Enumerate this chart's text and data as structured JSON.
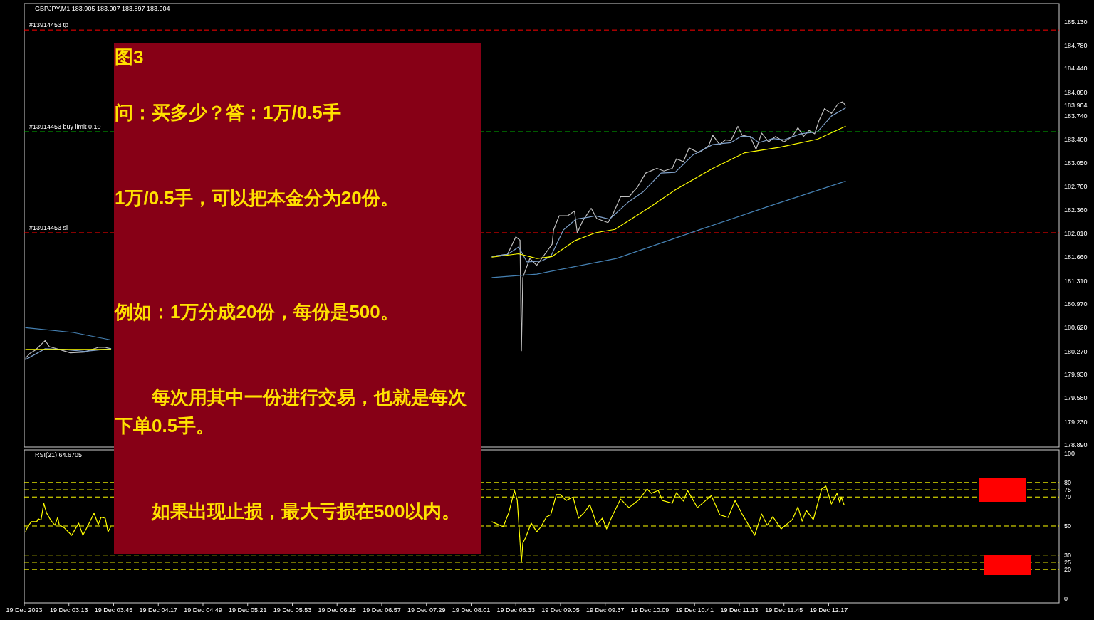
{
  "chart_data": [
    {
      "type": "line",
      "title": "GBPJPY,M1  183.905 183.907 183.897 183.904",
      "tick_labels": "y",
      "xlim": [
        "2023-12-19T02:41",
        "2023-12-19T15:02"
      ],
      "ylim": [
        178.86,
        185.4
      ],
      "yticks": [
        {
          "value": 185.13,
          "label": "185.130"
        },
        {
          "value": 184.78,
          "label": "184.780"
        },
        {
          "value": 184.44,
          "label": "184.440"
        },
        {
          "value": 184.09,
          "label": "184.090"
        },
        {
          "value": 183.904,
          "label": "183.904"
        },
        {
          "value": 183.74,
          "label": "183.740"
        },
        {
          "value": 183.4,
          "label": "183.400"
        },
        {
          "value": 183.05,
          "label": "183.050"
        },
        {
          "value": 182.7,
          "label": "182.700"
        },
        {
          "value": 182.36,
          "label": "182.360"
        },
        {
          "value": 182.01,
          "label": "182.010"
        },
        {
          "value": 181.66,
          "label": "181.660"
        },
        {
          "value": 181.31,
          "label": "181.310"
        },
        {
          "value": 180.97,
          "label": "180.970"
        },
        {
          "value": 180.62,
          "label": "180.620"
        },
        {
          "value": 180.27,
          "label": "180.270"
        },
        {
          "value": 179.93,
          "label": "179.930"
        },
        {
          "value": 179.58,
          "label": "179.580"
        },
        {
          "value": 179.23,
          "label": "179.230"
        },
        {
          "value": 178.89,
          "label": "178.890"
        }
      ],
      "ref_lines": [
        {
          "axis": "y",
          "value": 185.01,
          "label": "#13914453 tp",
          "color": "#ff0000",
          "line_style": "dashed"
        },
        {
          "axis": "y",
          "value": 183.904,
          "color": "#778899",
          "line_style": "solid"
        },
        {
          "axis": "y",
          "value": 183.51,
          "label": "#13914453 buy limit 0.10",
          "color": "#00c000",
          "line_style": "dashed"
        },
        {
          "axis": "y",
          "value": 182.02,
          "label": "#13914453 sl",
          "color": "#ff0000",
          "line_style": "dashed"
        }
      ],
      "series": [
        {
          "color": "#c0c0c0",
          "x": [
            "2023-12-19T02:42",
            "2023-12-19T02:45",
            "2023-12-19T02:49",
            "2023-12-19T02:56",
            "2023-12-19T02:59",
            "2023-12-19T03:06",
            "2023-12-19T03:14",
            "2023-12-19T03:24",
            "2023-12-19T03:34",
            "2023-12-19T03:39",
            "2023-12-19T03:43"
          ],
          "values": [
            180.17,
            180.24,
            180.29,
            180.43,
            180.34,
            180.3,
            180.25,
            180.26,
            180.33,
            180.33,
            180.31
          ]
        },
        {
          "color": "#c0c0c0",
          "x": [
            "2023-12-19T08:19",
            "2023-12-19T08:27",
            "2023-12-19T08:33",
            "2023-12-19T08:36",
            "2023-12-19T08:37",
            "2023-12-19T08:38",
            "2023-12-19T08:43",
            "2023-12-19T08:48",
            "2023-12-19T08:54",
            "2023-12-19T08:59",
            "2023-12-19T09:00",
            "2023-12-19T09:04",
            "2023-12-19T09:10",
            "2023-12-19T09:15",
            "2023-12-19T09:17",
            "2023-12-19T09:21",
            "2023-12-19T09:27",
            "2023-12-19T09:31",
            "2023-12-19T09:39",
            "2023-12-19T09:42",
            "2023-12-19T09:48",
            "2023-12-19T09:54",
            "2023-12-19T10:00",
            "2023-12-19T10:06",
            "2023-12-19T10:14",
            "2023-12-19T10:19",
            "2023-12-19T10:25",
            "2023-12-19T10:28",
            "2023-12-19T10:33",
            "2023-12-19T10:37",
            "2023-12-19T10:44",
            "2023-12-19T10:51",
            "2023-12-19T10:54",
            "2023-12-19T10:59",
            "2023-12-19T11:03",
            "2023-12-19T11:07",
            "2023-12-19T11:12",
            "2023-12-19T11:15",
            "2023-12-19T11:21",
            "2023-12-19T11:25",
            "2023-12-19T11:29",
            "2023-12-19T11:34",
            "2023-12-19T11:39",
            "2023-12-19T11:45",
            "2023-12-19T11:51",
            "2023-12-19T11:55",
            "2023-12-19T11:59",
            "2023-12-19T12:03",
            "2023-12-19T12:07",
            "2023-12-19T12:10",
            "2023-12-19T12:14",
            "2023-12-19T12:19",
            "2023-12-19T12:24",
            "2023-12-19T12:27",
            "2023-12-19T12:29"
          ],
          "values": [
            181.68,
            181.7,
            181.96,
            181.91,
            180.28,
            181.36,
            181.64,
            181.54,
            181.71,
            181.85,
            182.06,
            182.27,
            182.27,
            182.34,
            182.02,
            182.2,
            182.38,
            182.23,
            182.17,
            182.27,
            182.55,
            182.55,
            182.69,
            182.9,
            182.97,
            182.93,
            182.97,
            183.11,
            183.07,
            183.27,
            183.2,
            183.3,
            183.46,
            183.32,
            183.39,
            183.38,
            183.59,
            183.46,
            183.43,
            183.25,
            183.49,
            183.36,
            183.44,
            183.36,
            183.44,
            183.57,
            183.44,
            183.53,
            183.48,
            183.67,
            183.85,
            183.78,
            183.93,
            183.95,
            183.9
          ]
        },
        {
          "color": "#7fa0c8",
          "x": [
            "2023-12-19T02:42",
            "2023-12-19T02:56",
            "2023-12-19T03:09",
            "2023-12-19T03:24",
            "2023-12-19T03:43"
          ],
          "values": [
            180.15,
            180.31,
            180.3,
            180.27,
            180.31
          ]
        },
        {
          "color": "#7fa0c8",
          "x": [
            "2023-12-19T08:16",
            "2023-12-19T08:27",
            "2023-12-19T08:35",
            "2023-12-19T08:41",
            "2023-12-19T08:51",
            "2023-12-19T08:58",
            "2023-12-19T09:07",
            "2023-12-19T09:16",
            "2023-12-19T09:25",
            "2023-12-19T09:30",
            "2023-12-19T09:40",
            "2023-12-19T09:54",
            "2023-12-19T10:04",
            "2023-12-19T10:17",
            "2023-12-19T10:27",
            "2023-12-19T10:40",
            "2023-12-19T10:54",
            "2023-12-19T11:07",
            "2023-12-19T11:14",
            "2023-12-19T11:21",
            "2023-12-19T11:27",
            "2023-12-19T11:37",
            "2023-12-19T11:45",
            "2023-12-19T11:57",
            "2023-12-19T12:09",
            "2023-12-19T12:19",
            "2023-12-19T12:29"
          ],
          "values": [
            181.67,
            181.7,
            181.81,
            181.59,
            181.6,
            181.67,
            182.06,
            182.22,
            182.25,
            182.27,
            182.22,
            182.48,
            182.62,
            182.9,
            182.91,
            183.17,
            183.32,
            183.35,
            183.44,
            183.44,
            183.35,
            183.41,
            183.39,
            183.48,
            183.51,
            183.74,
            183.86
          ]
        },
        {
          "color": "#ffff00",
          "x": [
            "2023-12-19T02:42",
            "2023-12-19T03:09",
            "2023-12-19T03:43"
          ],
          "values": [
            180.3,
            180.3,
            180.3
          ]
        },
        {
          "color": "#ffff00",
          "x": [
            "2023-12-19T08:16",
            "2023-12-19T08:35",
            "2023-12-19T08:48",
            "2023-12-19T08:59",
            "2023-12-19T09:15",
            "2023-12-19T09:30",
            "2023-12-19T09:44",
            "2023-12-19T10:10",
            "2023-12-19T10:27",
            "2023-12-19T10:54",
            "2023-12-19T11:17",
            "2023-12-19T11:42",
            "2023-12-19T12:09",
            "2023-12-19T12:29"
          ],
          "values": [
            181.66,
            181.71,
            181.64,
            181.67,
            181.9,
            182.02,
            182.07,
            182.41,
            182.65,
            182.97,
            183.2,
            183.28,
            183.4,
            183.59
          ]
        },
        {
          "color": "#4682b4",
          "x": [
            "2023-12-19T02:42",
            "2023-12-19T03:16",
            "2023-12-19T03:43"
          ],
          "values": [
            180.62,
            180.55,
            180.44
          ]
        },
        {
          "color": "#4682b4",
          "x": [
            "2023-12-19T08:16",
            "2023-12-19T08:48",
            "2023-12-19T09:45",
            "2023-12-19T10:44",
            "2023-12-19T11:34",
            "2023-12-19T12:29"
          ],
          "values": [
            181.36,
            181.41,
            181.64,
            182.06,
            182.41,
            182.78
          ]
        }
      ]
    },
    {
      "type": "line",
      "title": "RSI(21) 64.6705",
      "xlim": [
        "2023-12-19T02:41",
        "2023-12-19T15:02"
      ],
      "xticks": [
        {
          "value": "2023-12-19T02:41",
          "label": "19 Dec 2023"
        },
        {
          "value": "2023-12-19T03:13",
          "label": "19 Dec 03:13"
        },
        {
          "value": "2023-12-19T03:45",
          "label": "19 Dec 03:45"
        },
        {
          "value": "2023-12-19T04:17",
          "label": "19 Dec 04:17"
        },
        {
          "value": "2023-12-19T04:49",
          "label": "19 Dec 04:49"
        },
        {
          "value": "2023-12-19T05:21",
          "label": "19 Dec 05:21"
        },
        {
          "value": "2023-12-19T05:53",
          "label": "19 Dec 05:53"
        },
        {
          "value": "2023-12-19T06:25",
          "label": "19 Dec 06:25"
        },
        {
          "value": "2023-12-19T06:57",
          "label": "19 Dec 06:57"
        },
        {
          "value": "2023-12-19T07:29",
          "label": "19 Dec 07:29"
        },
        {
          "value": "2023-12-19T08:01",
          "label": "19 Dec 08:01"
        },
        {
          "value": "2023-12-19T08:33",
          "label": "19 Dec 08:33"
        },
        {
          "value": "2023-12-19T09:05",
          "label": "19 Dec 09:05"
        },
        {
          "value": "2023-12-19T09:37",
          "label": "19 Dec 09:37"
        },
        {
          "value": "2023-12-19T10:09",
          "label": "19 Dec 10:09"
        },
        {
          "value": "2023-12-19T10:41",
          "label": "19 Dec 10:41"
        },
        {
          "value": "2023-12-19T11:13",
          "label": "19 Dec 11:13"
        },
        {
          "value": "2023-12-19T11:45",
          "label": "19 Dec 11:45"
        },
        {
          "value": "2023-12-19T12:17",
          "label": "19 Dec 12:17"
        }
      ],
      "ylim": [
        -3,
        102.5
      ],
      "yticks": [
        100,
        80,
        75,
        70,
        50,
        30,
        25,
        20,
        0
      ],
      "ref_lines": [
        {
          "axis": "y",
          "value": 80,
          "color": "#ffff00",
          "line_style": "dashed"
        },
        {
          "axis": "y",
          "value": 75,
          "color": "#ffff00",
          "line_style": "dashed"
        },
        {
          "axis": "y",
          "value": 70,
          "color": "#ffff00",
          "line_style": "dashed"
        },
        {
          "axis": "y",
          "value": 50,
          "color": "#ffff00",
          "line_style": "dashed"
        },
        {
          "axis": "y",
          "value": 30,
          "color": "#ffff00",
          "line_style": "dashed"
        },
        {
          "axis": "y",
          "value": 25,
          "color": "#ffff00",
          "line_style": "dashed"
        },
        {
          "axis": "y",
          "value": 20,
          "color": "#ffff00",
          "line_style": "dashed"
        }
      ],
      "series": [
        {
          "color": "#ffff00",
          "x": [
            "2023-12-19T02:42",
            "2023-12-19T02:43",
            "2023-12-19T02:46",
            "2023-12-19T02:50",
            "2023-12-19T02:51",
            "2023-12-19T02:53",
            "2023-12-19T02:55",
            "2023-12-19T02:57",
            "2023-12-19T03:00",
            "2023-12-19T03:03",
            "2023-12-19T03:05",
            "2023-12-19T03:06",
            "2023-12-19T03:10",
            "2023-12-19T03:15",
            "2023-12-19T03:17",
            "2023-12-19T03:20",
            "2023-12-19T03:23",
            "2023-12-19T03:27",
            "2023-12-19T03:31",
            "2023-12-19T03:34",
            "2023-12-19T03:36",
            "2023-12-19T03:39",
            "2023-12-19T03:41",
            "2023-12-19T03:43"
          ],
          "values": [
            46,
            48.5,
            53,
            53,
            55,
            54,
            65.7,
            59,
            54,
            50.5,
            56,
            51,
            48.5,
            43.6,
            47,
            52,
            43.6,
            51,
            58.8,
            51,
            56,
            55.4,
            46,
            49.5
          ]
        },
        {
          "color": "#ffff00",
          "x": [
            "2023-12-19T08:16",
            "2023-12-19T08:24",
            "2023-12-19T08:28",
            "2023-12-19T08:32",
            "2023-12-19T08:34",
            "2023-12-19T08:37",
            "2023-12-19T08:38",
            "2023-12-19T08:40",
            "2023-12-19T08:44",
            "2023-12-19T08:48",
            "2023-12-19T08:51",
            "2023-12-19T08:55",
            "2023-12-19T08:58",
            "2023-12-19T09:02",
            "2023-12-19T09:05",
            "2023-12-19T09:09",
            "2023-12-19T09:14",
            "2023-12-19T09:18",
            "2023-12-19T09:22",
            "2023-12-19T09:26",
            "2023-12-19T09:31",
            "2023-12-19T09:35",
            "2023-12-19T09:38",
            "2023-12-19T09:42",
            "2023-12-19T09:48",
            "2023-12-19T09:54",
            "2023-12-19T10:01",
            "2023-12-19T10:07",
            "2023-12-19T10:10",
            "2023-12-19T10:15",
            "2023-12-19T10:18",
            "2023-12-19T10:25",
            "2023-12-19T10:28",
            "2023-12-19T10:33",
            "2023-12-19T10:36",
            "2023-12-19T10:43",
            "2023-12-19T10:53",
            "2023-12-19T10:59",
            "2023-12-19T11:05",
            "2023-12-19T11:10",
            "2023-12-19T11:15",
            "2023-12-19T11:24",
            "2023-12-19T11:29",
            "2023-12-19T11:33",
            "2023-12-19T11:37",
            "2023-12-19T11:43",
            "2023-12-19T11:51",
            "2023-12-19T11:55",
            "2023-12-19T11:58",
            "2023-12-19T12:01",
            "2023-12-19T12:06",
            "2023-12-19T12:12",
            "2023-12-19T12:15",
            "2023-12-19T12:19",
            "2023-12-19T12:23",
            "2023-12-19T12:25",
            "2023-12-19T12:26",
            "2023-12-19T12:28"
          ],
          "values": [
            52.9,
            49.5,
            59.3,
            74.5,
            68,
            25,
            38.2,
            42,
            52,
            46,
            49.5,
            56.4,
            57.8,
            71.6,
            71.6,
            67.6,
            70,
            55.4,
            59.3,
            64.7,
            51,
            55.4,
            48,
            56.9,
            68.6,
            62.7,
            68,
            75.5,
            72.5,
            74.5,
            67.6,
            65.7,
            73,
            67.2,
            74.5,
            62.7,
            71,
            57.8,
            55.9,
            67.6,
            58.3,
            43.6,
            58.3,
            50.5,
            56.4,
            48,
            54.4,
            63.2,
            53.4,
            60.8,
            54.4,
            75.5,
            77.5,
            65.2,
            72.5,
            66.2,
            70,
            64.7
          ]
        }
      ]
    },
    {
      "type": "other",
      "title": "图3",
      "annotations": [
        "问：买多少？答：1万/0.5手",
        "1万/0.5手，可以把本金分为20份。",
        "例如：1万分成20份，每份是500。",
        "　　每次用其中一份进行交易，也就是每次下单0.5手。",
        "　　如果出现止损，最大亏损在500以内。"
      ]
    }
  ]
}
